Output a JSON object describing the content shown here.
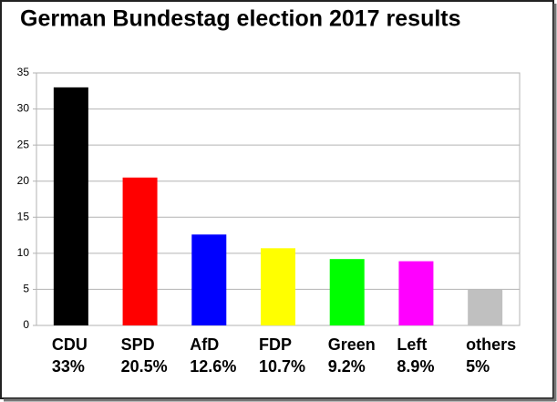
{
  "chart_data": {
    "type": "bar",
    "title": "German Bundestag election 2017 results",
    "categories": [
      "CDU",
      "SPD",
      "AfD",
      "FDP",
      "Green",
      "Left",
      "others"
    ],
    "values": [
      33,
      20.5,
      12.6,
      10.7,
      9.2,
      8.9,
      5
    ],
    "value_labels": [
      "33%",
      "20.5%",
      "12.6%",
      "10.7%",
      "9.2%",
      "8.9%",
      "5%"
    ],
    "colors": [
      "#000000",
      "#ff0000",
      "#0000ff",
      "#ffff00",
      "#00ff00",
      "#ff00ff",
      "#c0c0c0"
    ],
    "ylim": [
      0,
      35
    ],
    "yticks": [
      0,
      5,
      10,
      15,
      20,
      25,
      30,
      35
    ],
    "grid": true
  }
}
